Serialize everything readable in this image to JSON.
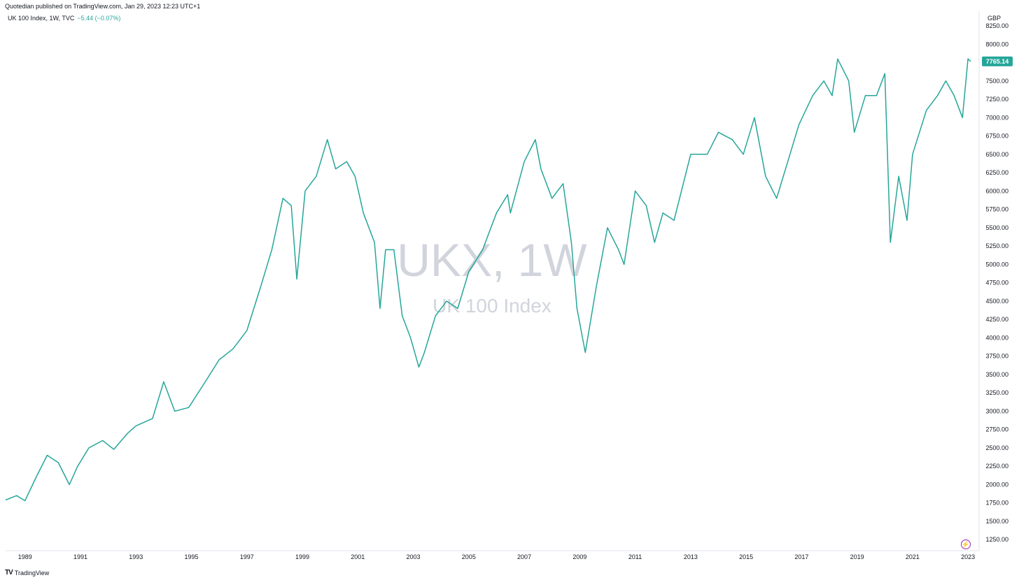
{
  "header": {
    "publisher": "Quotedian published on TradingView.com, Jan 29, 2023 12:23 UTC+1",
    "legend_symbol": "UK 100 Index, 1W, TVC",
    "legend_change": "−5.44 (−0.07%)"
  },
  "watermark": {
    "symbol": "UKX, 1W",
    "name": "UK 100 Index"
  },
  "footer": {
    "brand": "TradingView"
  },
  "colors": {
    "line": "#26a69a",
    "label_bg": "#26a69a",
    "watermark": "#d1d4dc",
    "text": "#131722"
  },
  "chart_data": {
    "type": "line",
    "currency": "GBP",
    "last_value_label": "7765.14",
    "x_ticks": [
      "1989",
      "1991",
      "1993",
      "1995",
      "1997",
      "1999",
      "2001",
      "2003",
      "2005",
      "2007",
      "2009",
      "2011",
      "2013",
      "2015",
      "2017",
      "2019",
      "2021",
      "2023"
    ],
    "y_ticks": [
      "1250.00",
      "1500.00",
      "1750.00",
      "2000.00",
      "2250.00",
      "2500.00",
      "2750.00",
      "3000.00",
      "3250.00",
      "3500.00",
      "3750.00",
      "4000.00",
      "4250.00",
      "4500.00",
      "4750.00",
      "5000.00",
      "5250.00",
      "5500.00",
      "5750.00",
      "6000.00",
      "6250.00",
      "6500.00",
      "6750.00",
      "7000.00",
      "7250.00",
      "7500.00",
      "7750.00",
      "8000.00",
      "8250.00"
    ],
    "xlim": [
      1988.3,
      2023.4
    ],
    "ylim": [
      1100,
      8450
    ],
    "series": [
      {
        "x": [
          1988.3,
          1988.7,
          1989.0,
          1989.4,
          1989.8,
          1990.2,
          1990.6,
          1990.9,
          1991.3,
          1991.8,
          1992.2,
          1992.7,
          1993.0,
          1993.6,
          1994.0,
          1994.4,
          1994.9,
          1995.5,
          1996.0,
          1996.5,
          1997.0,
          1997.5,
          1997.9,
          1998.3,
          1998.6,
          1998.8,
          1999.1,
          1999.5,
          1999.9,
          2000.2,
          2000.6,
          2000.9,
          2001.2,
          2001.6,
          2001.8,
          2002.0,
          2002.3,
          2002.6,
          2002.9,
          2003.2,
          2003.4,
          2003.8,
          2004.2,
          2004.6,
          2005.0,
          2005.5,
          2006.0,
          2006.4,
          2006.5,
          2007.0,
          2007.4,
          2007.6,
          2008.0,
          2008.4,
          2008.7,
          2008.9,
          2009.2,
          2009.6,
          2010.0,
          2010.4,
          2010.6,
          2011.0,
          2011.4,
          2011.7,
          2012.0,
          2012.4,
          2013.0,
          2013.4,
          2013.6,
          2014.0,
          2014.5,
          2014.9,
          2015.3,
          2015.7,
          2016.1,
          2016.5,
          2016.9,
          2017.4,
          2017.8,
          2018.1,
          2018.3,
          2018.7,
          2018.9,
          2019.3,
          2019.7,
          2020.0,
          2020.2,
          2020.5,
          2020.8,
          2021.0,
          2021.5,
          2021.9,
          2022.2,
          2022.5,
          2022.8,
          2023.0,
          2023.1
        ],
        "y": [
          1790,
          1850,
          1780,
          2100,
          2400,
          2300,
          2000,
          2250,
          2500,
          2600,
          2480,
          2700,
          2800,
          2900,
          3400,
          3000,
          3050,
          3400,
          3700,
          3850,
          4100,
          4700,
          5200,
          5900,
          5800,
          4800,
          6000,
          6200,
          6700,
          6300,
          6400,
          6200,
          5700,
          5300,
          4400,
          5200,
          5200,
          4300,
          4000,
          3600,
          3800,
          4300,
          4500,
          4400,
          4900,
          5200,
          5700,
          5950,
          5700,
          6400,
          6700,
          6300,
          5900,
          6100,
          5300,
          4400,
          3800,
          4700,
          5500,
          5200,
          5000,
          6000,
          5800,
          5300,
          5700,
          5600,
          6500,
          6500,
          6500,
          6800,
          6700,
          6500,
          7000,
          6200,
          5900,
          6400,
          6900,
          7300,
          7500,
          7300,
          7800,
          7500,
          6800,
          7300,
          7300,
          7600,
          5300,
          6200,
          5600,
          6500,
          7100,
          7300,
          7500,
          7300,
          7000,
          7800,
          7765
        ]
      }
    ]
  }
}
